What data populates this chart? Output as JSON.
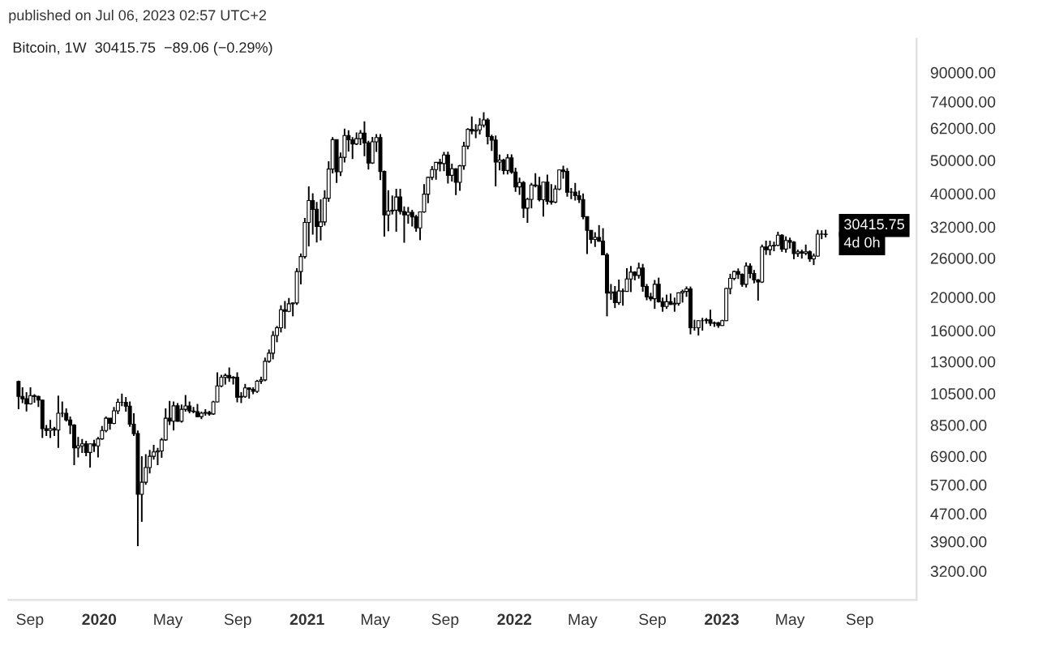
{
  "chart_data": {
    "type": "candlestick",
    "subtitle": "published on Jul 06, 2023 02:57 UTC+2",
    "title": "Bitcoin, 1W  30415.75  −89.06 (−0.29%)",
    "color": "#000000",
    "log": true,
    "ylim": [
      2640,
      112800
    ],
    "yticks": [
      {
        "value": 3200,
        "label": "3200.00"
      },
      {
        "value": 3900,
        "label": "3900.00"
      },
      {
        "value": 4700,
        "label": "4700.00"
      },
      {
        "value": 5700,
        "label": "5700.00"
      },
      {
        "value": 6900,
        "label": "6900.00"
      },
      {
        "value": 8500,
        "label": "8500.00"
      },
      {
        "value": 10500,
        "label": "10500.00"
      },
      {
        "value": 13000,
        "label": "13000.00"
      },
      {
        "value": 16000,
        "label": "16000.00"
      },
      {
        "value": 20000,
        "label": "20000.00"
      },
      {
        "value": 26000,
        "label": "26000.00"
      },
      {
        "value": 32000,
        "label": "32000.00"
      },
      {
        "value": 40000,
        "label": "40000.00"
      },
      {
        "value": 50000,
        "label": "50000.00"
      },
      {
        "value": 62000,
        "label": "62000.00"
      },
      {
        "value": 74000,
        "label": "74000.00"
      },
      {
        "value": 90000,
        "label": "90000.00"
      }
    ],
    "xlim": [
      "2019-07-25",
      "2023-12-10"
    ],
    "xticks": [
      {
        "value": "2019-09-01",
        "label": "Sep"
      },
      {
        "value": "2020-01-01",
        "label": "2020"
      },
      {
        "value": "2020-05-01",
        "label": "May"
      },
      {
        "value": "2020-09-01",
        "label": "Sep"
      },
      {
        "value": "2021-01-01",
        "label": "2021"
      },
      {
        "value": "2021-05-01",
        "label": "May"
      },
      {
        "value": "2021-09-01",
        "label": "Sep"
      },
      {
        "value": "2022-01-01",
        "label": "2022"
      },
      {
        "value": "2022-05-01",
        "label": "May"
      },
      {
        "value": "2022-09-01",
        "label": "Sep"
      },
      {
        "value": "2023-01-01",
        "label": "2023"
      },
      {
        "value": "2023-05-01",
        "label": "May"
      },
      {
        "value": "2023-09-01",
        "label": "Sep"
      }
    ],
    "annotations": [
      {
        "text": "30415.75",
        "x": "2023-07-03",
        "y": 30415.75
      },
      "4d 0h"
    ],
    "x": [
      "2019-08-12",
      "2019-08-19",
      "2019-08-26",
      "2019-09-02",
      "2019-09-09",
      "2019-09-16",
      "2019-09-23",
      "2019-09-30",
      "2019-10-07",
      "2019-10-14",
      "2019-10-21",
      "2019-10-28",
      "2019-11-04",
      "2019-11-11",
      "2019-11-18",
      "2019-11-25",
      "2019-12-02",
      "2019-12-09",
      "2019-12-16",
      "2019-12-23",
      "2019-12-30",
      "2020-01-06",
      "2020-01-13",
      "2020-01-20",
      "2020-01-27",
      "2020-02-03",
      "2020-02-10",
      "2020-02-17",
      "2020-02-24",
      "2020-03-02",
      "2020-03-09",
      "2020-03-16",
      "2020-03-23",
      "2020-03-30",
      "2020-04-06",
      "2020-04-13",
      "2020-04-20",
      "2020-04-27",
      "2020-05-04",
      "2020-05-11",
      "2020-05-18",
      "2020-05-25",
      "2020-06-01",
      "2020-06-08",
      "2020-06-15",
      "2020-06-22",
      "2020-06-29",
      "2020-07-06",
      "2020-07-13",
      "2020-07-20",
      "2020-07-27",
      "2020-08-03",
      "2020-08-10",
      "2020-08-17",
      "2020-08-24",
      "2020-08-31",
      "2020-09-07",
      "2020-09-14",
      "2020-09-21",
      "2020-09-28",
      "2020-10-05",
      "2020-10-12",
      "2020-10-19",
      "2020-10-26",
      "2020-11-02",
      "2020-11-09",
      "2020-11-16",
      "2020-11-23",
      "2020-11-30",
      "2020-12-07",
      "2020-12-14",
      "2020-12-21",
      "2020-12-28",
      "2021-01-04",
      "2021-01-11",
      "2021-01-18",
      "2021-01-25",
      "2021-02-01",
      "2021-02-08",
      "2021-02-15",
      "2021-02-22",
      "2021-03-01",
      "2021-03-08",
      "2021-03-15",
      "2021-03-22",
      "2021-03-29",
      "2021-04-05",
      "2021-04-12",
      "2021-04-19",
      "2021-04-26",
      "2021-05-03",
      "2021-05-10",
      "2021-05-17",
      "2021-05-24",
      "2021-05-31",
      "2021-06-07",
      "2021-06-14",
      "2021-06-21",
      "2021-06-28",
      "2021-07-05",
      "2021-07-12",
      "2021-07-19",
      "2021-07-26",
      "2021-08-02",
      "2021-08-09",
      "2021-08-16",
      "2021-08-23",
      "2021-08-30",
      "2021-09-06",
      "2021-09-13",
      "2021-09-20",
      "2021-09-27",
      "2021-10-04",
      "2021-10-11",
      "2021-10-18",
      "2021-10-25",
      "2021-11-01",
      "2021-11-08",
      "2021-11-15",
      "2021-11-22",
      "2021-11-29",
      "2021-12-06",
      "2021-12-13",
      "2021-12-20",
      "2021-12-27",
      "2022-01-03",
      "2022-01-10",
      "2022-01-17",
      "2022-01-24",
      "2022-01-31",
      "2022-02-07",
      "2022-02-14",
      "2022-02-21",
      "2022-02-28",
      "2022-03-07",
      "2022-03-14",
      "2022-03-21",
      "2022-03-28",
      "2022-04-04",
      "2022-04-11",
      "2022-04-18",
      "2022-04-25",
      "2022-05-02",
      "2022-05-09",
      "2022-05-16",
      "2022-05-23",
      "2022-05-30",
      "2022-06-06",
      "2022-06-13",
      "2022-06-20",
      "2022-06-27",
      "2022-07-04",
      "2022-07-11",
      "2022-07-18",
      "2022-07-25",
      "2022-08-01",
      "2022-08-08",
      "2022-08-15",
      "2022-08-22",
      "2022-08-29",
      "2022-09-05",
      "2022-09-12",
      "2022-09-19",
      "2022-09-26",
      "2022-10-03",
      "2022-10-10",
      "2022-10-17",
      "2022-10-24",
      "2022-10-31",
      "2022-11-07",
      "2022-11-14",
      "2022-11-21",
      "2022-11-28",
      "2022-12-05",
      "2022-12-12",
      "2022-12-19",
      "2022-12-26",
      "2023-01-02",
      "2023-01-09",
      "2023-01-16",
      "2023-01-23",
      "2023-01-30",
      "2023-02-06",
      "2023-02-13",
      "2023-02-20",
      "2023-02-27",
      "2023-03-06",
      "2023-03-13",
      "2023-03-20",
      "2023-03-27",
      "2023-04-03",
      "2023-04-10",
      "2023-04-17",
      "2023-04-24",
      "2023-05-01",
      "2023-05-08",
      "2023-05-15",
      "2023-05-22",
      "2023-05-29",
      "2023-06-05",
      "2023-06-12",
      "2023-06-19",
      "2023-06-26",
      "2023-07-03"
    ],
    "ohlc": [
      [
        11380,
        11450,
        9460,
        10300
      ],
      [
        10300,
        10950,
        9850,
        10140
      ],
      [
        10140,
        10600,
        9320,
        9800
      ],
      [
        9800,
        10950,
        9750,
        10350
      ],
      [
        10350,
        10450,
        9880,
        10300
      ],
      [
        10300,
        10360,
        9600,
        10050
      ],
      [
        10050,
        10080,
        7800,
        8300
      ],
      [
        8300,
        8500,
        7900,
        8200
      ],
      [
        8200,
        8800,
        7800,
        8300
      ],
      [
        8300,
        8400,
        7900,
        8220
      ],
      [
        8220,
        10350,
        7300,
        9200
      ],
      [
        9200,
        9950,
        8970,
        9200
      ],
      [
        9200,
        9500,
        8700,
        8800
      ],
      [
        8800,
        9000,
        8000,
        8500
      ],
      [
        8500,
        8550,
        6500,
        7300
      ],
      [
        7300,
        7850,
        6850,
        7400
      ],
      [
        7400,
        7750,
        7050,
        7500
      ],
      [
        7500,
        7650,
        6900,
        7080
      ],
      [
        7080,
        7500,
        6400,
        7500
      ],
      [
        7500,
        7700,
        7100,
        7400
      ],
      [
        7400,
        7850,
        6850,
        7750
      ],
      [
        7750,
        8450,
        7700,
        8200
      ],
      [
        8200,
        9000,
        8100,
        8900
      ],
      [
        8900,
        8900,
        8250,
        8600
      ],
      [
        8600,
        9600,
        8550,
        9350
      ],
      [
        9350,
        10150,
        9150,
        9900
      ],
      [
        9900,
        10500,
        9650,
        9900
      ],
      [
        9900,
        10250,
        9300,
        9650
      ],
      [
        9650,
        9950,
        8400,
        8550
      ],
      [
        8550,
        9200,
        7900,
        8030
      ],
      [
        8030,
        8200,
        3780,
        5350
      ],
      [
        5350,
        6900,
        4450,
        5800
      ],
      [
        5800,
        7000,
        5700,
        6400
      ],
      [
        6400,
        7200,
        6150,
        6900
      ],
      [
        6900,
        7450,
        6750,
        7100
      ],
      [
        7100,
        7300,
        6500,
        7150
      ],
      [
        7150,
        7800,
        6830,
        7700
      ],
      [
        7700,
        9500,
        7650,
        8900
      ],
      [
        8900,
        10000,
        8500,
        8730
      ],
      [
        8730,
        9950,
        8200,
        9670
      ],
      [
        9670,
        9850,
        8700,
        8720
      ],
      [
        8720,
        9750,
        8650,
        9450
      ],
      [
        9450,
        10400,
        9300,
        9660
      ],
      [
        9660,
        9950,
        9200,
        9340
      ],
      [
        9340,
        9600,
        9200,
        9300
      ],
      [
        9300,
        9800,
        8950,
        9000
      ],
      [
        9000,
        9300,
        8850,
        9200
      ],
      [
        9200,
        9450,
        9050,
        9250
      ],
      [
        9250,
        9350,
        9050,
        9160
      ],
      [
        9160,
        10000,
        9100,
        9930
      ],
      [
        9930,
        12100,
        9900,
        11050
      ],
      [
        11050,
        11900,
        10950,
        11700
      ],
      [
        11700,
        12000,
        11150,
        11850
      ],
      [
        11850,
        12500,
        11350,
        11650
      ],
      [
        11650,
        11800,
        11150,
        11700
      ],
      [
        11700,
        12100,
        9900,
        10250
      ],
      [
        10250,
        10600,
        9850,
        10300
      ],
      [
        10300,
        11200,
        10200,
        10900
      ],
      [
        10900,
        10950,
        10150,
        10800
      ],
      [
        10800,
        10950,
        10450,
        10650
      ],
      [
        10650,
        11500,
        10550,
        11400
      ],
      [
        11400,
        11750,
        11200,
        11500
      ],
      [
        11500,
        13350,
        11400,
        13030
      ],
      [
        13030,
        14100,
        12900,
        13750
      ],
      [
        13750,
        15950,
        13200,
        15480
      ],
      [
        15480,
        16500,
        14800,
        16300
      ],
      [
        16300,
        18950,
        15800,
        18400
      ],
      [
        18400,
        19500,
        16200,
        18200
      ],
      [
        18200,
        19900,
        18100,
        19150
      ],
      [
        19150,
        19300,
        17600,
        19250
      ],
      [
        19250,
        24300,
        19000,
        23750
      ],
      [
        23750,
        26800,
        21800,
        26250
      ],
      [
        26250,
        34000,
        25900,
        33000
      ],
      [
        33000,
        42000,
        28100,
        38200
      ],
      [
        38200,
        40100,
        30400,
        36000
      ],
      [
        36000,
        37850,
        28850,
        32100
      ],
      [
        32100,
        38500,
        29250,
        33100
      ],
      [
        33100,
        40950,
        32300,
        38800
      ],
      [
        38800,
        49700,
        37900,
        47150
      ],
      [
        47150,
        58350,
        45800,
        57400
      ],
      [
        57400,
        57550,
        43000,
        46300
      ],
      [
        46300,
        52650,
        45000,
        51000
      ],
      [
        51000,
        61800,
        49300,
        59000
      ],
      [
        59000,
        61150,
        53000,
        57350
      ],
      [
        57350,
        58400,
        50400,
        55800
      ],
      [
        55800,
        60200,
        55400,
        57800
      ],
      [
        57800,
        61200,
        55400,
        60000
      ],
      [
        60000,
        64850,
        51400,
        56150
      ],
      [
        56150,
        57000,
        47000,
        49100
      ],
      [
        49100,
        58450,
        48800,
        56600
      ],
      [
        56600,
        59600,
        52900,
        58200
      ],
      [
        58200,
        59600,
        43800,
        46400
      ],
      [
        46400,
        46650,
        30000,
        34700
      ],
      [
        34700,
        40900,
        31100,
        35600
      ],
      [
        35600,
        39500,
        34800,
        35800
      ],
      [
        35800,
        41300,
        31000,
        39100
      ],
      [
        39100,
        41300,
        34800,
        35500
      ],
      [
        35500,
        36700,
        28800,
        34700
      ],
      [
        34700,
        36600,
        32700,
        35300
      ],
      [
        35300,
        35900,
        32100,
        34250
      ],
      [
        34250,
        34700,
        31000,
        31800
      ],
      [
        31800,
        35400,
        29300,
        35400
      ],
      [
        35400,
        42600,
        35200,
        39850
      ],
      [
        39850,
        44800,
        37500,
        44600
      ],
      [
        44600,
        48100,
        43800,
        47000
      ],
      [
        47000,
        49400,
        43900,
        49300
      ],
      [
        49300,
        50500,
        46400,
        48900
      ],
      [
        48900,
        52900,
        46500,
        51800
      ],
      [
        51800,
        52950,
        42800,
        45200
      ],
      [
        45200,
        48850,
        43400,
        47250
      ],
      [
        47250,
        47400,
        39600,
        43150
      ],
      [
        43150,
        48500,
        40750,
        48200
      ],
      [
        48200,
        56600,
        46900,
        54950
      ],
      [
        54950,
        62000,
        53850,
        61500
      ],
      [
        61500,
        67000,
        59500,
        60850
      ],
      [
        60850,
        63700,
        58000,
        61300
      ],
      [
        61300,
        66300,
        59400,
        63300
      ],
      [
        63300,
        69000,
        62300,
        65500
      ],
      [
        65500,
        66300,
        55600,
        58600
      ],
      [
        58600,
        59300,
        53250,
        57250
      ],
      [
        57250,
        59000,
        42000,
        49400
      ],
      [
        49400,
        51950,
        46750,
        50100
      ],
      [
        50100,
        50500,
        45500,
        46700
      ],
      [
        46700,
        52100,
        45500,
        50800
      ],
      [
        50800,
        52050,
        45700,
        46200
      ],
      [
        46200,
        47550,
        40500,
        41850
      ],
      [
        41850,
        44500,
        39650,
        43100
      ],
      [
        43100,
        43500,
        34000,
        36300
      ],
      [
        36300,
        38900,
        32900,
        38500
      ],
      [
        38500,
        43000,
        36250,
        42400
      ],
      [
        42400,
        45850,
        41700,
        42200
      ],
      [
        42200,
        44750,
        38000,
        38400
      ],
      [
        38400,
        43250,
        34300,
        43200
      ],
      [
        43200,
        45400,
        37150,
        38000
      ],
      [
        38000,
        42600,
        37150,
        37800
      ],
      [
        37800,
        42350,
        37550,
        41250
      ],
      [
        41250,
        47000,
        40900,
        46850
      ],
      [
        46850,
        48200,
        44200,
        46400
      ],
      [
        46400,
        47450,
        39200,
        40400
      ],
      [
        40400,
        41550,
        38550,
        40400
      ],
      [
        40400,
        43000,
        38200,
        39450
      ],
      [
        39450,
        40800,
        37600,
        38450
      ],
      [
        38450,
        40050,
        33700,
        34300
      ],
      [
        34300,
        34300,
        26700,
        31300
      ],
      [
        31300,
        31350,
        28650,
        29450
      ],
      [
        29450,
        30900,
        28000,
        29850
      ],
      [
        29850,
        32400,
        29000,
        29100
      ],
      [
        29100,
        31750,
        26500,
        26550
      ],
      [
        26550,
        26900,
        17600,
        20550
      ],
      [
        20550,
        21850,
        19650,
        20730
      ],
      [
        20730,
        21550,
        18600,
        19300
      ],
      [
        19300,
        22500,
        19000,
        20850
      ],
      [
        20850,
        21200,
        18900,
        20800
      ],
      [
        20800,
        24300,
        20750,
        22600
      ],
      [
        22600,
        24650,
        20700,
        23650
      ],
      [
        23650,
        23800,
        22400,
        23150
      ],
      [
        23150,
        25200,
        22650,
        24300
      ],
      [
        24300,
        25000,
        20750,
        21500
      ],
      [
        21500,
        21850,
        19600,
        20050
      ],
      [
        20050,
        20600,
        19500,
        19800
      ],
      [
        19800,
        22450,
        18500,
        21800
      ],
      [
        21800,
        22800,
        19300,
        19400
      ],
      [
        19400,
        19950,
        18150,
        18800
      ],
      [
        18800,
        20350,
        18500,
        19400
      ],
      [
        19400,
        20500,
        19000,
        19050
      ],
      [
        19050,
        19950,
        18150,
        19200
      ],
      [
        19200,
        20650,
        18900,
        20600
      ],
      [
        20600,
        21050,
        19300,
        20800
      ],
      [
        20800,
        21500,
        20050,
        21150
      ],
      [
        21150,
        21480,
        15600,
        16300
      ],
      [
        16300,
        17200,
        16000,
        16300
      ],
      [
        16300,
        17150,
        15480,
        17100
      ],
      [
        17100,
        17420,
        16000,
        17100
      ],
      [
        17100,
        17400,
        16750,
        17200
      ],
      [
        17200,
        18400,
        16500,
        16800
      ],
      [
        16800,
        17000,
        16400,
        16850
      ],
      [
        16850,
        16950,
        16300,
        16550
      ],
      [
        16550,
        17200,
        16500,
        17100
      ],
      [
        17100,
        21300,
        17050,
        21200
      ],
      [
        21200,
        23400,
        20400,
        22700
      ],
      [
        22700,
        23900,
        22400,
        23750
      ],
      [
        23750,
        24250,
        22600,
        23300
      ],
      [
        23300,
        23450,
        21450,
        21800
      ],
      [
        21800,
        25250,
        21350,
        24650
      ],
      [
        24650,
        25100,
        22700,
        23450
      ],
      [
        23450,
        24000,
        21950,
        22450
      ],
      [
        22450,
        22600,
        19550,
        22150
      ],
      [
        22150,
        28450,
        22000,
        28000
      ],
      [
        28000,
        29200,
        26550,
        27500
      ],
      [
        27500,
        29200,
        26500,
        28200
      ],
      [
        28200,
        29000,
        27200,
        28300
      ],
      [
        28300,
        31000,
        28150,
        30300
      ],
      [
        30300,
        30500,
        27100,
        27600
      ],
      [
        27600,
        30050,
        26950,
        29250
      ],
      [
        29250,
        29800,
        27700,
        28900
      ],
      [
        28900,
        29100,
        25800,
        26800
      ],
      [
        26800,
        27500,
        26200,
        27100
      ],
      [
        27100,
        27500,
        25900,
        26850
      ],
      [
        26850,
        28450,
        26500,
        27100
      ],
      [
        27100,
        27350,
        25350,
        25850
      ],
      [
        25850,
        26800,
        24800,
        26350
      ],
      [
        26350,
        31400,
        26250,
        30500
      ],
      [
        30500,
        31300,
        29500,
        30505
      ],
      [
        30505,
        31400,
        29850,
        30415.75
      ]
    ]
  }
}
